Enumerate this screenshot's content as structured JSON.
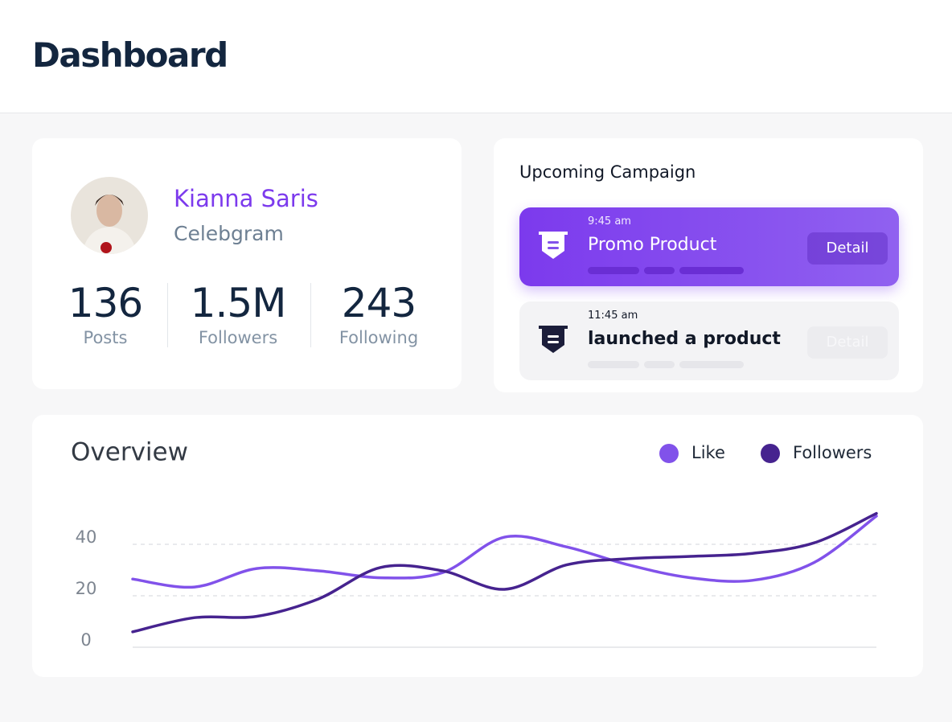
{
  "header": {
    "title": "Dashboard"
  },
  "profile": {
    "name": "Kianna Saris",
    "role": "Celebgram",
    "stats": [
      {
        "value": "136",
        "label": "Posts"
      },
      {
        "value": "1.5M",
        "label": "Followers"
      },
      {
        "value": "243",
        "label": "Following"
      }
    ]
  },
  "campaign": {
    "title": "Upcoming Campaign",
    "items": [
      {
        "time": "9:45 am",
        "title": "Promo Product",
        "button": "Detail"
      },
      {
        "time": "11:45 am",
        "title": "launched a product",
        "button": "Detail"
      }
    ]
  },
  "chart_data": {
    "type": "line",
    "title": "Overview",
    "categories": [
      null,
      null,
      null,
      null,
      null,
      null,
      null,
      null,
      null,
      null,
      null,
      null,
      null
    ],
    "series": [
      {
        "name": "Like",
        "color": "#8152ea",
        "values": [
          26.5,
          23.4,
          30.6,
          29.7,
          27,
          29,
          42.8,
          39,
          32,
          27,
          26,
          33,
          51
        ]
      },
      {
        "name": "Followers",
        "color": "#46238f",
        "values": [
          6,
          11.5,
          12,
          18.8,
          31,
          29.7,
          22.5,
          32,
          34.4,
          35.3,
          36.5,
          40.6,
          52
        ]
      }
    ],
    "ylim": [
      0,
      55
    ],
    "yticks": [
      0,
      20,
      40
    ],
    "grid": true
  }
}
